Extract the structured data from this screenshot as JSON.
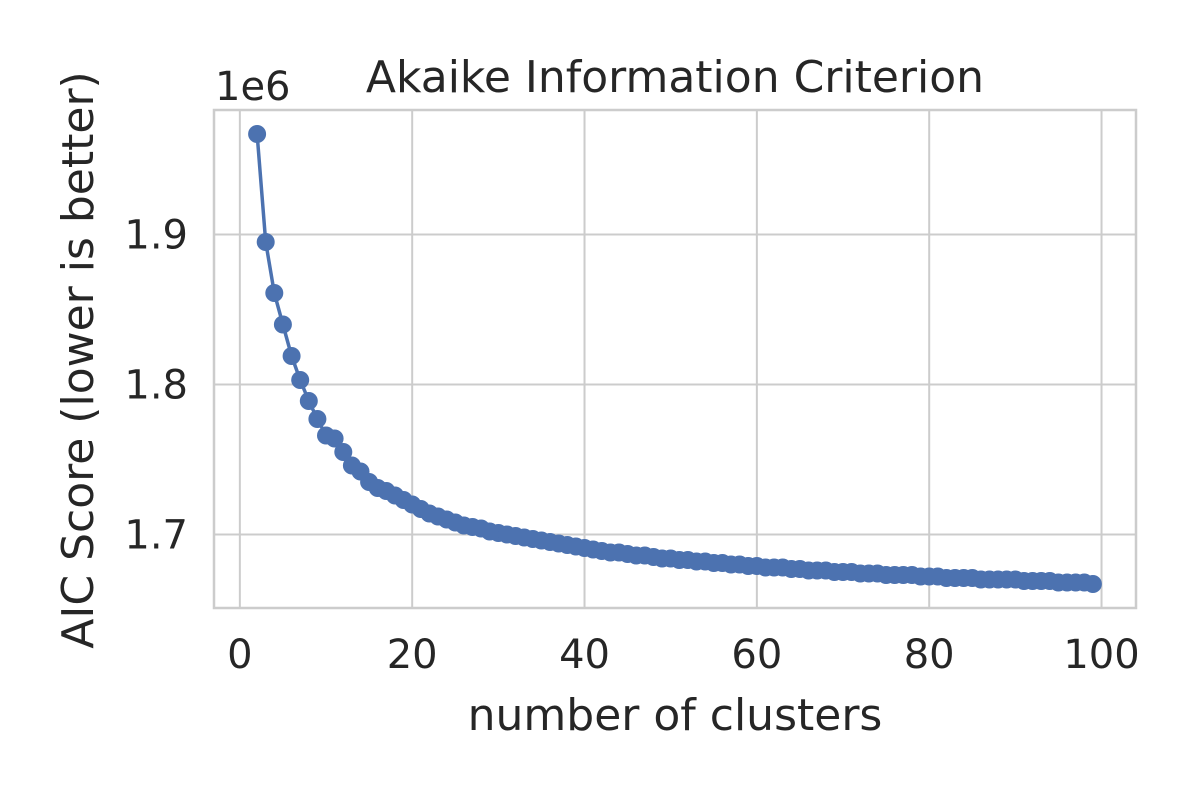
{
  "chart_data": {
    "type": "line",
    "title": "Akaike Information Criterion",
    "xlabel": "number of clusters",
    "ylabel": "AIC Score (lower is better)",
    "y_offset_label": "1e6",
    "xlim": [
      -3,
      104
    ],
    "ylim": [
      1.651,
      1.983
    ],
    "x_ticks": [
      0,
      20,
      40,
      60,
      80,
      100
    ],
    "x_tick_labels": [
      "0",
      "20",
      "40",
      "60",
      "80",
      "100"
    ],
    "y_ticks": [
      1.7,
      1.8,
      1.9
    ],
    "y_tick_labels": [
      "1.7",
      "1.8",
      "1.9"
    ],
    "grid": true,
    "legend": "none",
    "series": [
      {
        "color": "#4c72b0",
        "marker": "circle",
        "x": [
          2,
          3,
          4,
          5,
          6,
          7,
          8,
          9,
          10,
          11,
          12,
          13,
          14,
          15,
          16,
          17,
          18,
          19,
          20,
          21,
          22,
          23,
          24,
          25,
          26,
          27,
          28,
          29,
          30,
          31,
          32,
          33,
          34,
          35,
          36,
          37,
          38,
          39,
          40,
          41,
          42,
          43,
          44,
          45,
          46,
          47,
          48,
          49,
          50,
          51,
          52,
          53,
          54,
          55,
          56,
          57,
          58,
          59,
          60,
          61,
          62,
          63,
          64,
          65,
          66,
          67,
          68,
          69,
          70,
          71,
          72,
          73,
          74,
          75,
          76,
          77,
          78,
          79,
          80,
          81,
          82,
          83,
          84,
          85,
          86,
          87,
          88,
          89,
          90,
          91,
          92,
          93,
          94,
          95,
          96,
          97,
          98,
          99
        ],
        "y": [
          1.967,
          1.895,
          1.861,
          1.84,
          1.819,
          1.803,
          1.789,
          1.777,
          1.766,
          1.764,
          1.755,
          1.746,
          1.742,
          1.735,
          1.731,
          1.729,
          1.726,
          1.723,
          1.72,
          1.717,
          1.714,
          1.712,
          1.71,
          1.708,
          1.706,
          1.705,
          1.704,
          1.702,
          1.701,
          1.7,
          1.699,
          1.698,
          1.697,
          1.696,
          1.695,
          1.694,
          1.693,
          1.692,
          1.691,
          1.69,
          1.689,
          1.688,
          1.688,
          1.687,
          1.686,
          1.686,
          1.685,
          1.684,
          1.684,
          1.683,
          1.683,
          1.682,
          1.682,
          1.681,
          1.681,
          1.68,
          1.68,
          1.679,
          1.679,
          1.678,
          1.678,
          1.678,
          1.677,
          1.677,
          1.676,
          1.676,
          1.676,
          1.675,
          1.675,
          1.675,
          1.674,
          1.674,
          1.674,
          1.673,
          1.673,
          1.673,
          1.673,
          1.672,
          1.672,
          1.672,
          1.671,
          1.671,
          1.671,
          1.671,
          1.67,
          1.67,
          1.67,
          1.67,
          1.67,
          1.669,
          1.669,
          1.669,
          1.669,
          1.668,
          1.668,
          1.668,
          1.668,
          1.667
        ]
      }
    ]
  }
}
